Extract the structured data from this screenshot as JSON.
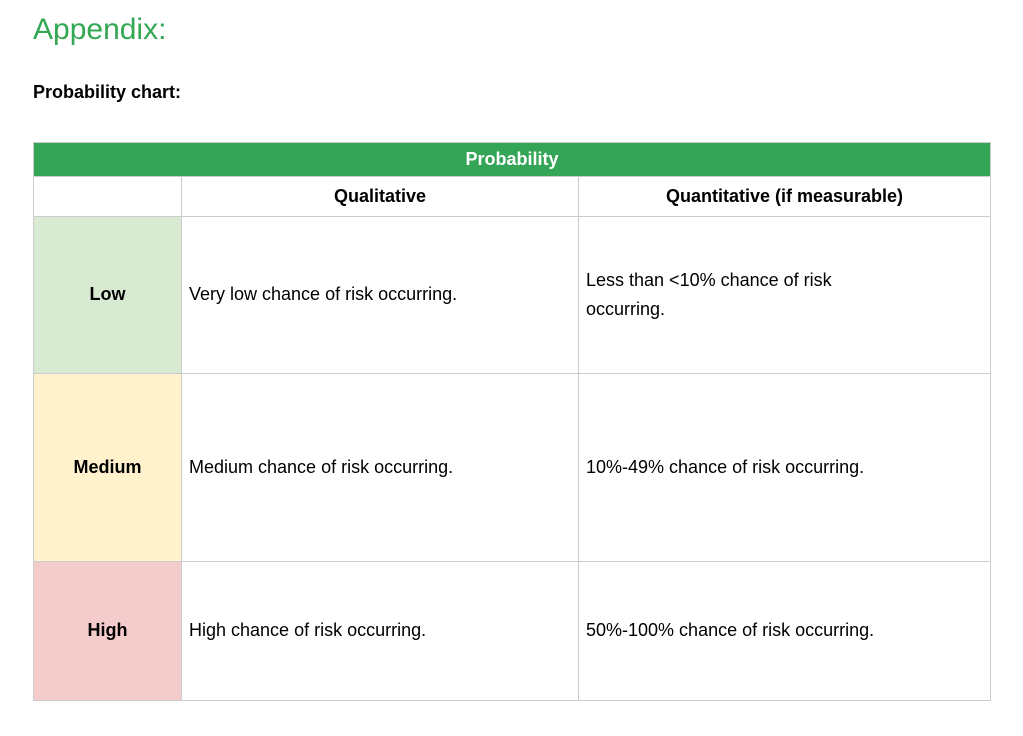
{
  "page": {
    "heading": "Appendix:",
    "subheading": "Probability chart:"
  },
  "colors": {
    "heading_text": "#34a853",
    "table_header_bg": "#34a457",
    "table_header_text": "#ffffff",
    "low_cell_bg": "#d9ead3",
    "medium_cell_bg": "#fff2cc",
    "high_cell_bg": "#f4cccc",
    "border": "#cccccc"
  },
  "table": {
    "title": "Probability",
    "columns": [
      "",
      "Qualitative",
      "Quantitative (if measurable)"
    ],
    "rows": [
      {
        "label": "Low",
        "qualitative": "Very low chance of risk occurring.",
        "quantitative": "Less than <10% chance of risk occurring.",
        "color": "#d9ead3"
      },
      {
        "label": "Medium",
        "qualitative": "Medium chance of risk occurring.",
        "quantitative": "10%-49% chance of risk occurring.",
        "color": "#fff2cc"
      },
      {
        "label": "High",
        "qualitative": "High chance of risk occurring.",
        "quantitative": "50%-100% chance of risk occurring.",
        "color": "#f4cccc"
      }
    ]
  }
}
